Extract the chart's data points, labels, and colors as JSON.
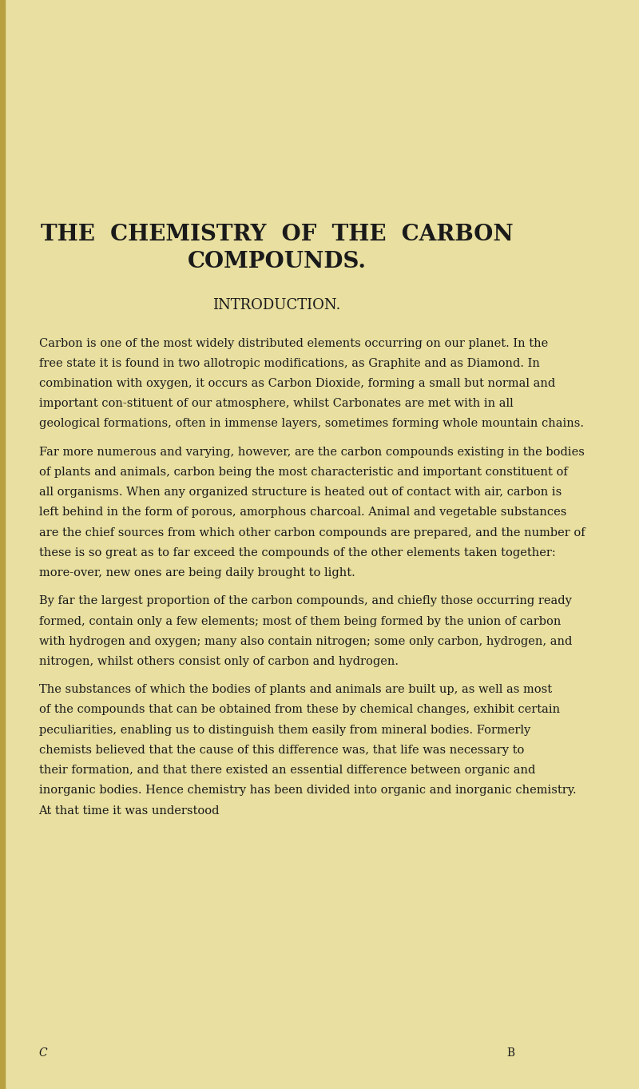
{
  "bg_color": "#e8dfa0",
  "text_color": "#1a1a1a",
  "page_width": 8.0,
  "page_height": 13.63,
  "dpi": 100,
  "left_bar_color": "#b8a040",
  "title_line1": "THE  CHEMISTRY  OF  THE  CARBON",
  "title_line2": "COMPOUNDS.",
  "section_heading": "INTRODUCTION.",
  "paragraphs": [
    {
      "first_word": "Carbon",
      "first_word_style": "smallcaps",
      "rest": " is one of the most widely distributed elements occurring on our planet.  In the free state it is found in two allotropic modifications, as ",
      "italic_parts": [
        {
          "text": "Graphite",
          "italic": true
        },
        {
          "text": " and as ",
          "italic": false
        },
        {
          "text": "Diamond.",
          "italic": true
        }
      ],
      "continuation": "  In combination with oxygen, it occurs as ",
      "italic_parts2": [
        {
          "text": "Carbon Dioxide,",
          "italic": true
        }
      ],
      "continuation2": " forming a small but normal and important con-stituent of our atmosphere, whilst ",
      "italic_parts3": [
        {
          "text": "Carbonates",
          "italic": true
        }
      ],
      "continuation3": " are met with in all geological formations, often in immense layers, sometimes forming whole mountain chains.",
      "indent": false,
      "full_text": "CARBON is one of the most widely distributed elements occurring on our planet.  In the free state it is found in two allotropic modifications, as Graphite and as Diamond.  In combination with oxygen, it occurs as Carbon Dioxide, forming a small but normal and important con-stituent of our atmosphere, whilst Carbonates are met with in all geological formations, often in immense layers, sometimes forming whole mountain chains."
    },
    {
      "indent": true,
      "full_text": "Far more numerous and varying, however, are the carbon compounds existing in the bodies of plants and animals, carbon being the most characteristic and important constituent of all organisms.  When any organized structure is heated out of contact with air, carbon is left behind in the form of porous, amorphous charcoal.  Animal and vegetable substances are the chief sources from which other carbon compounds are prepared, and the number of these is so great as to far exceed the compounds of the other elements taken together: more-over, new ones are being daily brought to light."
    },
    {
      "indent": true,
      "full_text": "By far the largest proportion of the carbon compounds, and chiefly those occurring ready formed, contain only a few elements; most of them being formed by the union of carbon with hydrogen and oxygen; many also contain nitrogen; some only carbon, hydrogen, and nitrogen, whilst others consist only of carbon and hydrogen."
    },
    {
      "indent": true,
      "full_text": "The substances of which the bodies of plants and animals are built up, as well as most of the compounds that can be obtained from these by chemical changes, exhibit certain peculiarities, enabling us to distinguish them easily from mineral bodies.  Formerly chemists believed that the cause of this difference was, that life was necessary to their formation, and that there existed an essential difference between organic and inorganic bodies.  Hence chemistry has been divided into organic and inorganic chemistry.  At that time it was understood"
    }
  ],
  "footer_left": "C",
  "footer_right": "B"
}
